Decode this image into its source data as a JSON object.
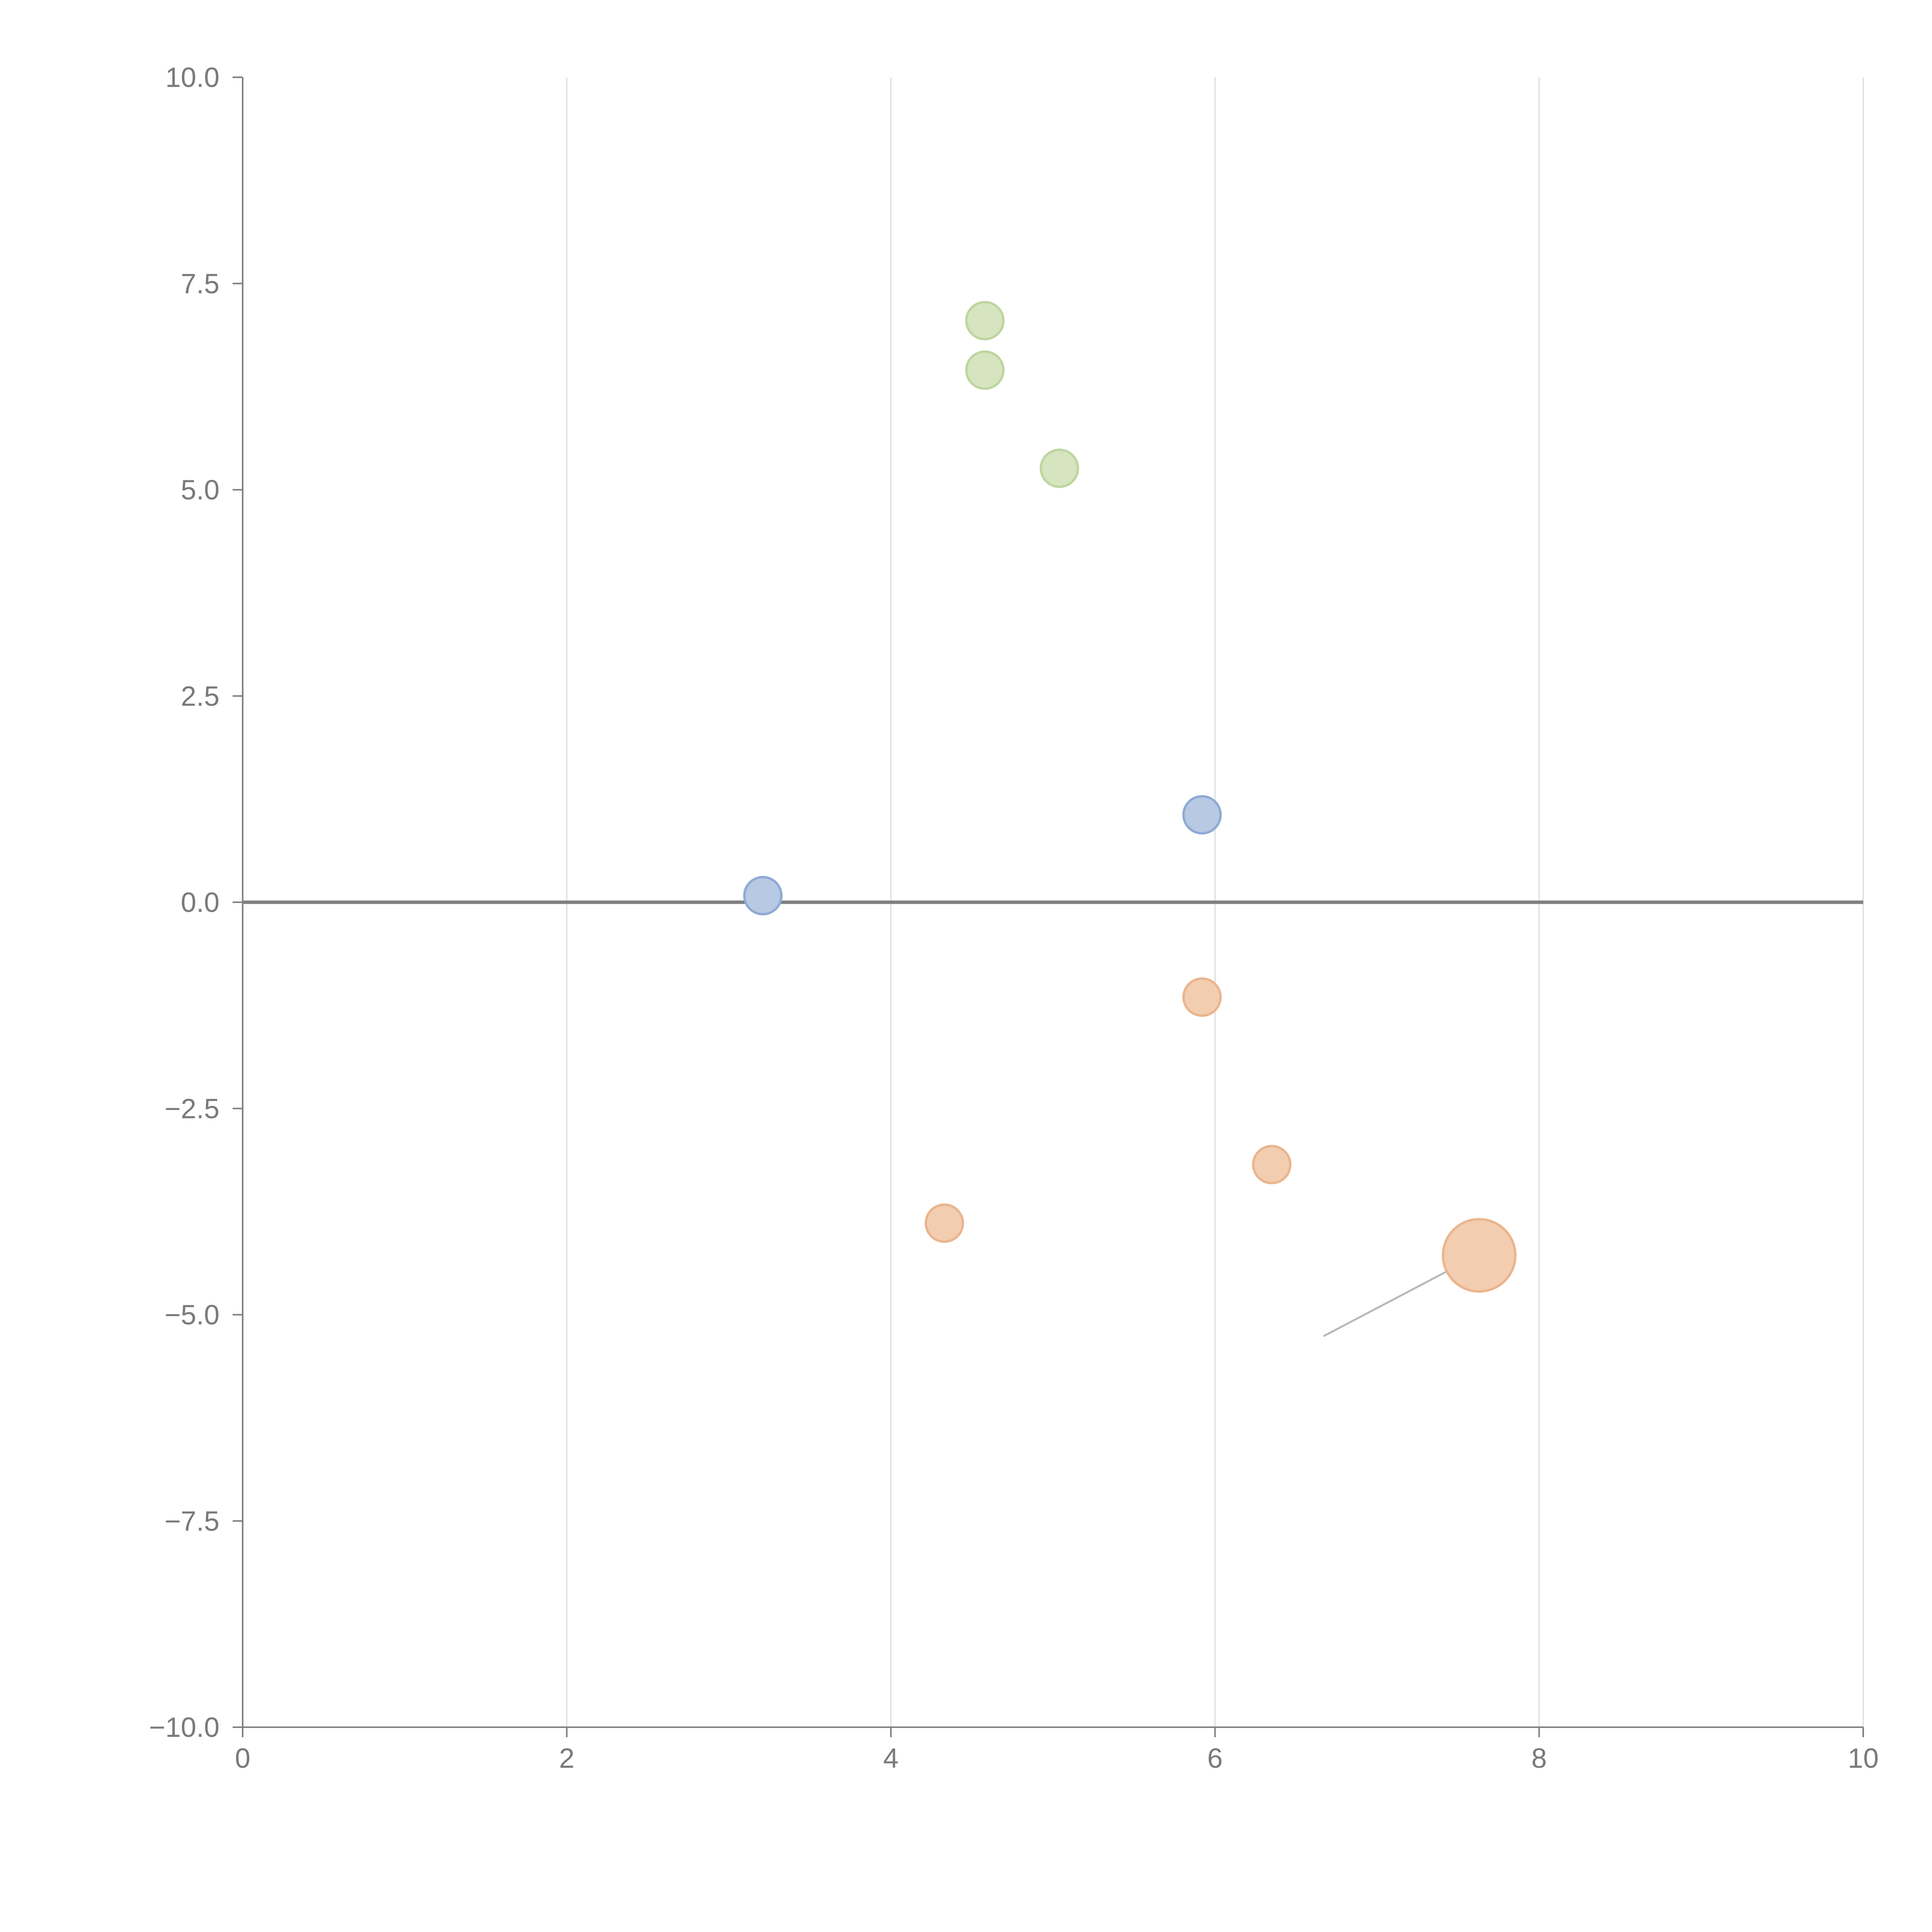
{
  "chart_data": {
    "type": "scatter",
    "title": "",
    "xlabel": "",
    "ylabel": "",
    "xlim": [
      0,
      10
    ],
    "ylim": [
      -10,
      10
    ],
    "grid": "vertical",
    "zero_line": true,
    "x_ticks": [
      0,
      2,
      4,
      6,
      8,
      10
    ],
    "x_tick_labels": [
      "0",
      "2",
      "4",
      "6",
      "8",
      "10"
    ],
    "y_ticks": [
      -10,
      -7.5,
      -5,
      -2.5,
      0,
      2.5,
      5,
      7.5,
      10
    ],
    "y_tick_labels": [
      "−10.0",
      "−7.5",
      "−5.0",
      "−2.5",
      "0.0",
      "2.5",
      "5.0",
      "7.5",
      "10.0"
    ],
    "series": [
      {
        "name": "blue",
        "fill": "#b7c9e3",
        "stroke": "#8eaad4",
        "points": [
          {
            "x": 3.21,
            "y": 0.08,
            "size": 1
          },
          {
            "x": 5.92,
            "y": 1.06,
            "size": 1
          }
        ]
      },
      {
        "name": "green",
        "fill": "#d6e4bf",
        "stroke": "#bed59f",
        "points": [
          {
            "x": 4.58,
            "y": 7.05,
            "size": 1
          },
          {
            "x": 4.58,
            "y": 6.45,
            "size": 1
          },
          {
            "x": 5.04,
            "y": 5.26,
            "size": 1
          }
        ]
      },
      {
        "name": "orange",
        "fill": "#f2cdb0",
        "stroke": "#ebb48c",
        "points": [
          {
            "x": 5.92,
            "y": -1.15,
            "size": 1
          },
          {
            "x": 6.35,
            "y": -3.18,
            "size": 1
          },
          {
            "x": 4.33,
            "y": -3.89,
            "size": 1
          },
          {
            "x": 7.63,
            "y": -4.28,
            "size": 2
          }
        ]
      }
    ],
    "annotations": [
      {
        "type": "leader-line",
        "from": [
          7.6,
          -4.3
        ],
        "to": [
          6.67,
          -5.26
        ]
      }
    ]
  }
}
